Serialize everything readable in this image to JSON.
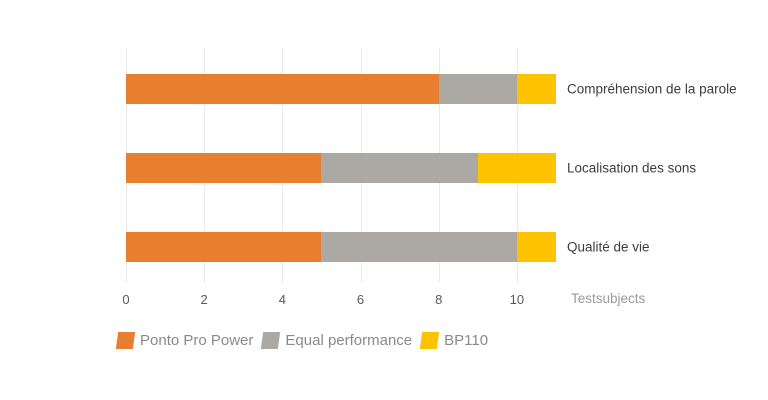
{
  "chart_data": {
    "type": "bar",
    "orientation": "horizontal",
    "stacked": true,
    "categories": [
      "Compréhension de la parole",
      "Localisation des sons",
      "Qualité de vie"
    ],
    "series": [
      {
        "name": "Ponto Pro Power",
        "color": "#E87E2F",
        "values": [
          8,
          5,
          5
        ]
      },
      {
        "name": "Equal performance",
        "color": "#ACA8A4",
        "values": [
          2,
          4,
          5
        ]
      },
      {
        "name": "BP110",
        "color": "#FDC300",
        "values": [
          1,
          2,
          1
        ]
      }
    ],
    "totals": [
      11,
      11,
      11
    ],
    "xlabel": "Testsubjects",
    "x_ticks": [
      0,
      2,
      4,
      6,
      8,
      10
    ],
    "xlim": [
      0,
      11
    ],
    "grid": true,
    "legend_position": "bottom"
  },
  "colors": {
    "background": "#FFFFFF",
    "gridline": "#EAEAEA",
    "category_label": "#3D3D3D",
    "tick_label": "#595959",
    "axis_title": "#9A9A9A",
    "legend_text": "#8A8A8A"
  }
}
